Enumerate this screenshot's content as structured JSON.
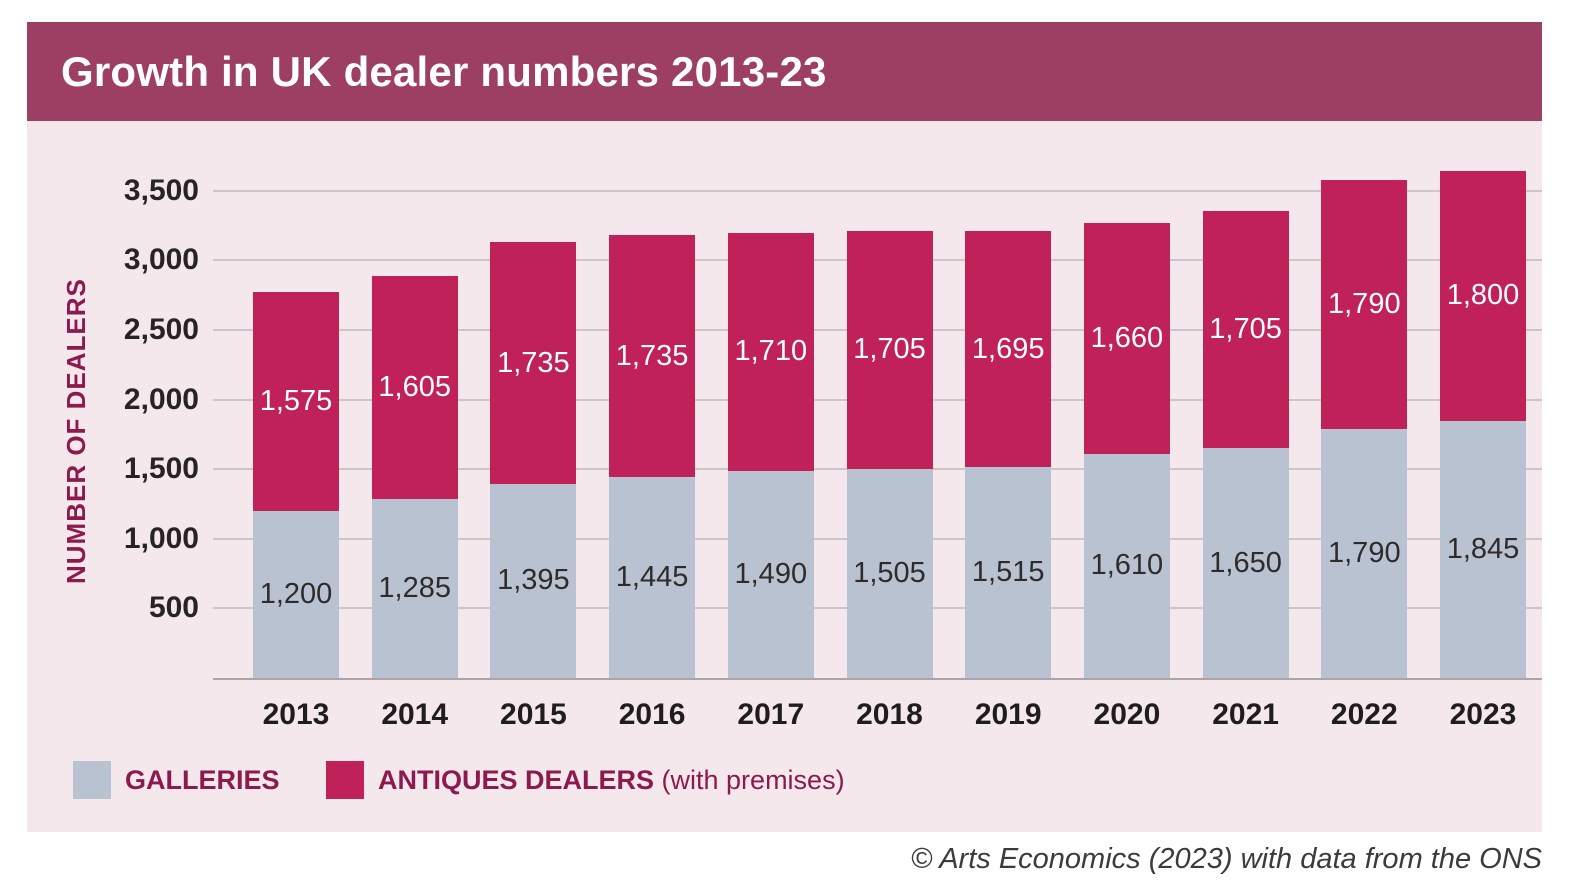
{
  "title": "Growth in UK dealer numbers 2013-23",
  "footer": "© Arts Economics (2023) with data from the ONS",
  "y_axis_title": "NUMBER OF DEALERS",
  "colors": {
    "title_bar": "#9d3e63",
    "panel_background": "#f5e8ed",
    "galleries_bar": "#b8c2d0",
    "antiques_bar": "#c02158",
    "gridline": "#ccc6ca",
    "axis_text": "#282425",
    "maroon_text": "#8c1a4e",
    "galleries_label_text": "#2f2b2c",
    "antiques_label_text": "#ffffff"
  },
  "chart_data": {
    "type": "bar",
    "stacked": true,
    "title": "Growth in UK dealer numbers 2013-23",
    "xlabel": "",
    "ylabel": "NUMBER OF DEALERS",
    "categories": [
      "2013",
      "2014",
      "2015",
      "2016",
      "2017",
      "2018",
      "2019",
      "2020",
      "2021",
      "2022",
      "2023"
    ],
    "series": [
      {
        "name": "GALLERIES",
        "color": "#b8c2d0",
        "label_color": "#2f2b2c",
        "values": [
          1200,
          1285,
          1395,
          1445,
          1490,
          1505,
          1515,
          1610,
          1650,
          1790,
          1845
        ],
        "labels": [
          "1,200",
          "1,285",
          "1,395",
          "1,445",
          "1,490",
          "1,505",
          "1,515",
          "1,610",
          "1,650",
          "1,790",
          "1,845"
        ]
      },
      {
        "name": "ANTIQUES DEALERS",
        "name_suffix": " (with premises)",
        "color": "#c02158",
        "label_color": "#ffffff",
        "values": [
          1575,
          1605,
          1735,
          1735,
          1710,
          1705,
          1695,
          1660,
          1705,
          1790,
          1800
        ],
        "labels": [
          "1,575",
          "1,605",
          "1,735",
          "1,735",
          "1,710",
          "1,705",
          "1,695",
          "1,660",
          "1,705",
          "1,790",
          "1,800"
        ]
      }
    ],
    "yticks": [
      500,
      1000,
      1500,
      2000,
      2500,
      3000,
      3500
    ],
    "ytick_labels": [
      "500",
      "1,000",
      "1,500",
      "2,000",
      "2,500",
      "3,000",
      "3,500"
    ],
    "ylim": [
      0,
      3770
    ],
    "grid": true,
    "legend_position": "bottom"
  },
  "legend": [
    {
      "label": "GALLERIES",
      "suffix": "",
      "color": "#b8c2d0"
    },
    {
      "label": "ANTIQUES DEALERS",
      "suffix": " (with premises)",
      "color": "#c02158"
    }
  ]
}
